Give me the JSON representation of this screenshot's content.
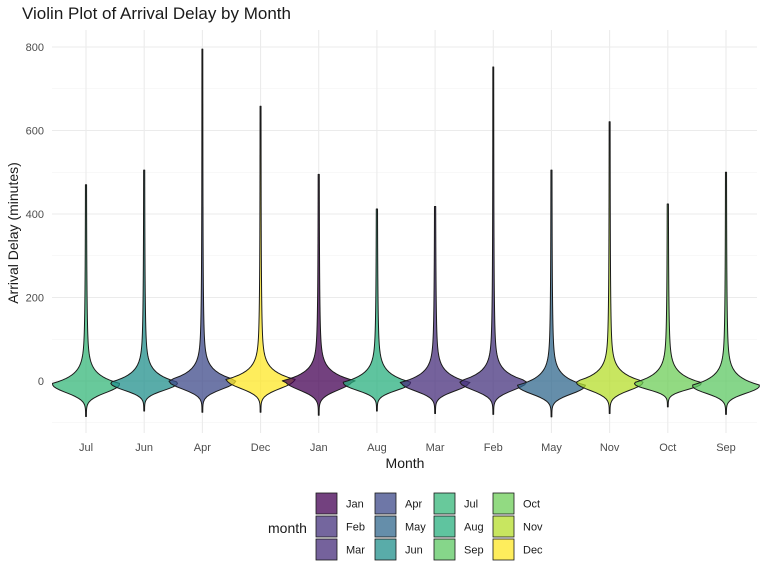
{
  "chart_data": {
    "type": "violin",
    "title": "Violin Plot of Arrival Delay by Month",
    "xlabel": "Month",
    "ylabel": "Arrival Delay (minutes)",
    "ylim": [
      -100,
      820
    ],
    "y_ticks": [
      0,
      200,
      400,
      600,
      800
    ],
    "grid": true,
    "legend_position": "bottom",
    "legend_title": "month",
    "categories": [
      "Jul",
      "Jun",
      "Apr",
      "Dec",
      "Jan",
      "Aug",
      "Mar",
      "Feb",
      "May",
      "Nov",
      "Oct",
      "Sep"
    ],
    "series": [
      {
        "month": "Jul",
        "min": -85,
        "max": 470,
        "center": -8,
        "color": "#35B779"
      },
      {
        "month": "Jun",
        "min": -72,
        "max": 505,
        "center": -5,
        "color": "#21908C"
      },
      {
        "month": "Apr",
        "min": -75,
        "max": 795,
        "center": 0,
        "color": "#3E4A89"
      },
      {
        "month": "Dec",
        "min": -75,
        "max": 658,
        "center": 2,
        "color": "#FDE725"
      },
      {
        "month": "Jan",
        "min": -82,
        "max": 495,
        "center": 0,
        "color": "#440154"
      },
      {
        "month": "Aug",
        "min": -72,
        "max": 412,
        "center": -5,
        "color": "#2AB07F"
      },
      {
        "month": "Mar",
        "min": -78,
        "max": 418,
        "center": -5,
        "color": "#472D7B"
      },
      {
        "month": "Feb",
        "min": -80,
        "max": 752,
        "center": -2,
        "color": "#46337E"
      },
      {
        "month": "May",
        "min": -86,
        "max": 505,
        "center": -12,
        "color": "#31688E"
      },
      {
        "month": "Nov",
        "min": -78,
        "max": 621,
        "center": -3,
        "color": "#B5DE2B"
      },
      {
        "month": "Oct",
        "min": -62,
        "max": 424,
        "center": -6,
        "color": "#6ECE58"
      },
      {
        "month": "Sep",
        "min": -80,
        "max": 500,
        "center": -12,
        "color": "#5DC863"
      }
    ],
    "legend_entries": [
      {
        "label": "Jan",
        "color": "#440154"
      },
      {
        "label": "Feb",
        "color": "#46337E"
      },
      {
        "label": "Mar",
        "color": "#472D7B"
      },
      {
        "label": "Apr",
        "color": "#3E4A89"
      },
      {
        "label": "May",
        "color": "#31688E"
      },
      {
        "label": "Jun",
        "color": "#21908C"
      },
      {
        "label": "Jul",
        "color": "#35B779"
      },
      {
        "label": "Aug",
        "color": "#2AB07F"
      },
      {
        "label": "Sep",
        "color": "#5DC863"
      },
      {
        "label": "Oct",
        "color": "#6ECE58"
      },
      {
        "label": "Nov",
        "color": "#B5DE2B"
      },
      {
        "label": "Dec",
        "color": "#FDE725"
      }
    ]
  }
}
